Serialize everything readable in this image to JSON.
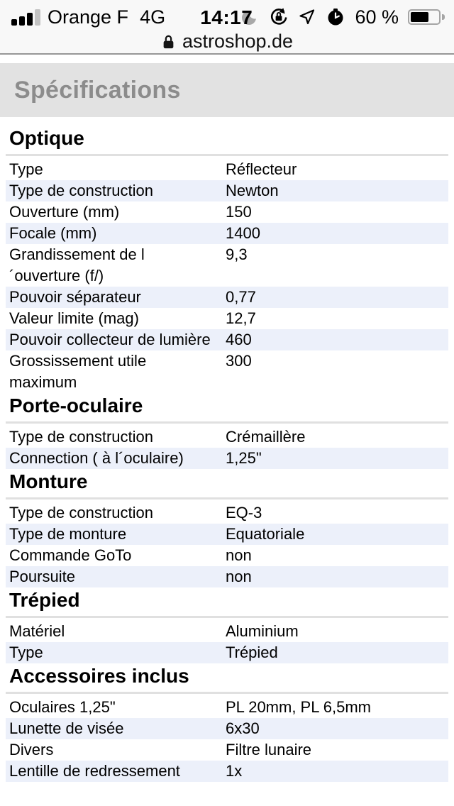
{
  "status_bar": {
    "carrier": "Orange F",
    "network": "4G",
    "time": "14:17",
    "battery_percent": "60 %",
    "battery_level": 0.6,
    "icons": [
      "cell-signal-icon",
      "moon-icon",
      "rotation-lock-icon",
      "location-arrow-icon",
      "alarm-clock-icon",
      "battery-icon"
    ]
  },
  "url_bar": {
    "domain": "astroshop.de",
    "icon": "lock-icon"
  },
  "page": {
    "header": "Spécifications",
    "sections": [
      {
        "title": "Optique",
        "rows": [
          {
            "label": "Type",
            "value": "Réflecteur"
          },
          {
            "label": "Type de construction",
            "value": "Newton"
          },
          {
            "label": "Ouverture (mm)",
            "value": "150"
          },
          {
            "label": "Focale (mm)",
            "value": "1400"
          },
          {
            "label": "Grandissement de l ´ouverture (f/)",
            "value": "9,3"
          },
          {
            "label": "Pouvoir séparateur",
            "value": "0,77"
          },
          {
            "label": "Valeur limite (mag)",
            "value": "12,7"
          },
          {
            "label": "Pouvoir collecteur de lumière",
            "value": "460"
          },
          {
            "label": "Grossissement utile maximum",
            "value": "300"
          }
        ]
      },
      {
        "title": "Porte-oculaire",
        "rows": [
          {
            "label": "Type de construction",
            "value": "Crémaillère"
          },
          {
            "label": "Connection ( à l´oculaire)",
            "value": "1,25\""
          }
        ]
      },
      {
        "title": "Monture",
        "rows": [
          {
            "label": "Type de construction",
            "value": "EQ-3"
          },
          {
            "label": "Type de monture",
            "value": "Equatoriale"
          },
          {
            "label": "Commande GoTo",
            "value": "non"
          },
          {
            "label": "Poursuite",
            "value": "non"
          }
        ]
      },
      {
        "title": "Trépied",
        "rows": [
          {
            "label": "Matériel",
            "value": "Aluminium"
          },
          {
            "label": "Type",
            "value": "Trépied"
          }
        ]
      },
      {
        "title": "Accessoires inclus",
        "rows": [
          {
            "label": "Oculaires 1,25\"",
            "value": "PL 20mm, PL 6,5mm"
          },
          {
            "label": "Lunette de visée",
            "value": "6x30"
          },
          {
            "label": "Divers",
            "value": "Filtre lunaire"
          },
          {
            "label": "Lentille de redressement",
            "value": "1x"
          }
        ]
      }
    ]
  },
  "colors": {
    "row_alt": "#ECF0FA",
    "divider": "#E0E0E0",
    "band_bg": "#E2E2E2",
    "band_text": "#8C8C8C",
    "chrome_bg": "#F8F8F8",
    "chrome_border": "#979797"
  }
}
